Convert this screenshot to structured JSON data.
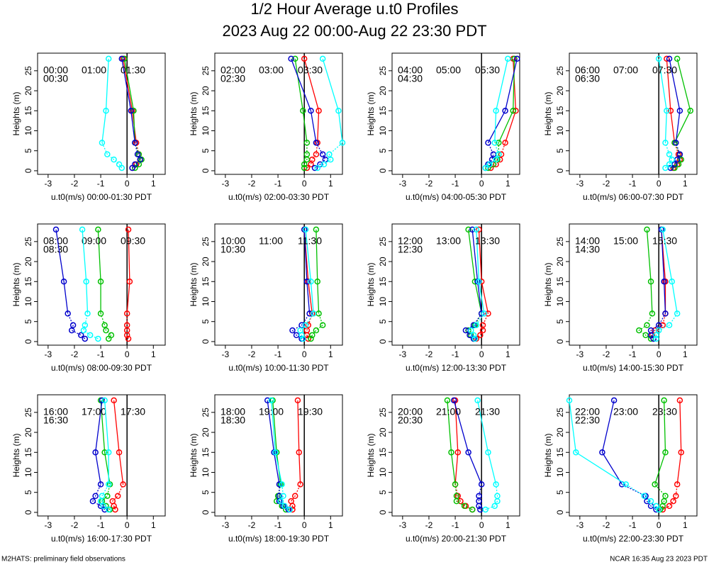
{
  "title": "1/2 Hour Average u.t0 Profiles",
  "subtitle": "2023 Aug 22 00:00-Aug 22 23:30 PDT",
  "footer_left": "M2HATS: preliminary field observations",
  "footer_right": "NCAR 16:35 Aug 23 2023 PDT",
  "chart_data": [
    {
      "type": "line",
      "xlabel": "u.t0(m/s) 00:00-01:30 PDT",
      "ylabel": "Heights (m)",
      "xlim": [
        -3.4,
        1.45
      ],
      "ylim": [
        -0.9,
        29.4
      ],
      "xticks": [
        -3,
        -2,
        -1,
        0,
        1
      ],
      "yticks": [
        0,
        5,
        10,
        15,
        20,
        25
      ],
      "y": [
        0.7,
        1.6,
        2.8,
        4.1,
        7,
        15,
        28
      ],
      "series": [
        {
          "name": "00:00",
          "color": "#ff0000",
          "values": [
            0.2,
            0.35,
            0.5,
            0.45,
            0.35,
            0.2,
            -0.15
          ]
        },
        {
          "name": "00:30",
          "color": "#00c000",
          "values": [
            0.3,
            0.45,
            0.55,
            0.45,
            0.3,
            0.25,
            -0.1
          ]
        },
        {
          "name": "01:00",
          "color": "#0000cc",
          "values": [
            0.2,
            0.3,
            0.5,
            0.4,
            0.3,
            0.15,
            -0.2
          ]
        },
        {
          "name": "01:30",
          "color": "#00ffff",
          "values": [
            -0.2,
            -0.3,
            -0.5,
            -0.75,
            -0.95,
            -0.8,
            -0.7
          ]
        }
      ]
    },
    {
      "type": "line",
      "xlabel": "u.t0(m/s) 02:00-03:30 PDT",
      "ylabel": "Heights (m)",
      "xlim": [
        -3.4,
        1.45
      ],
      "ylim": [
        -0.9,
        29.4
      ],
      "xticks": [
        -3,
        -2,
        -1,
        0,
        1
      ],
      "yticks": [
        0,
        5,
        10,
        15,
        20,
        25
      ],
      "y": [
        0.7,
        1.6,
        2.8,
        4.1,
        7,
        15,
        28
      ],
      "series": [
        {
          "name": "02:00",
          "color": "#ff0000",
          "values": [
            0.1,
            0.25,
            0.3,
            0.45,
            0.5,
            0.55,
            0
          ]
        },
        {
          "name": "02:30",
          "color": "#00c000",
          "values": [
            0,
            0,
            0.1,
            0.1,
            0.1,
            -0.05,
            -0.35
          ]
        },
        {
          "name": "03:00",
          "color": "#0000cc",
          "values": [
            0.4,
            0.6,
            0.8,
            0.7,
            0.45,
            0.25,
            -0.5
          ]
        },
        {
          "name": "03:30",
          "color": "#00ffff",
          "values": [
            0.5,
            0.75,
            1.0,
            0.95,
            1.45,
            1.3,
            0.7
          ]
        }
      ]
    },
    {
      "type": "line",
      "xlabel": "u.t0(m/s) 04:00-05:30 PDT",
      "ylabel": "Heights (m)",
      "xlim": [
        -3.4,
        1.45
      ],
      "ylim": [
        -0.9,
        29.4
      ],
      "xticks": [
        -3,
        -2,
        -1,
        0,
        1
      ],
      "yticks": [
        0,
        5,
        10,
        15,
        20,
        25
      ],
      "y": [
        0.7,
        1.6,
        2.8,
        4.1,
        7,
        15,
        28
      ],
      "series": [
        {
          "name": "04:00",
          "color": "#ff0000",
          "values": [
            0.35,
            0.55,
            0.7,
            0.75,
            0.9,
            1.3,
            1.2
          ]
        },
        {
          "name": "04:30",
          "color": "#00c000",
          "values": [
            0.25,
            0.45,
            0.6,
            0.65,
            0.65,
            1.2,
            1.25
          ]
        },
        {
          "name": "05:00",
          "color": "#0000cc",
          "values": [
            0.15,
            0.25,
            0.4,
            0.45,
            0.25,
            0.9,
            1.35
          ]
        },
        {
          "name": "05:30",
          "color": "#00ffff",
          "values": [
            0.15,
            0.3,
            0.55,
            0.65,
            0.5,
            0.55,
            1.0
          ]
        }
      ]
    },
    {
      "type": "line",
      "xlabel": "u.t0(m/s) 06:00-07:30 PDT",
      "ylabel": "Heights (m)",
      "xlim": [
        -3.4,
        1.45
      ],
      "ylim": [
        -0.9,
        29.4
      ],
      "xticks": [
        -3,
        -2,
        -1,
        0,
        1
      ],
      "yticks": [
        0,
        5,
        10,
        15,
        20,
        25
      ],
      "y": [
        0.7,
        1.6,
        2.8,
        4.1,
        7,
        15,
        28
      ],
      "series": [
        {
          "name": "06:00",
          "color": "#ff0000",
          "values": [
            0.55,
            0.7,
            0.8,
            0.75,
            0.6,
            0.45,
            0.3
          ]
        },
        {
          "name": "06:30",
          "color": "#00c000",
          "values": [
            0.6,
            0.75,
            0.85,
            0.8,
            0.6,
            1.2,
            0.7
          ]
        },
        {
          "name": "07:00",
          "color": "#0000cc",
          "values": [
            0.45,
            0.6,
            0.7,
            0.8,
            0.65,
            0.8,
            0.4
          ]
        },
        {
          "name": "07:30",
          "color": "#00ffff",
          "values": [
            0.25,
            0.4,
            0.5,
            0.4,
            0.25,
            0.3,
            0
          ]
        }
      ]
    },
    {
      "type": "line",
      "xlabel": "u.t0(m/s) 08:00-09:30 PDT",
      "ylabel": "Heights (m)",
      "xlim": [
        -3.4,
        1.45
      ],
      "ylim": [
        -0.9,
        29.4
      ],
      "xticks": [
        -3,
        -2,
        -1,
        0,
        1
      ],
      "yticks": [
        0,
        5,
        10,
        15,
        20,
        25
      ],
      "y": [
        0.7,
        1.6,
        2.8,
        4.1,
        7,
        15,
        28
      ],
      "series": [
        {
          "name": "08:00",
          "color": "#ff0000",
          "values": [
            0.05,
            0,
            0,
            0,
            0,
            0.1,
            0.05
          ]
        },
        {
          "name": "08:30",
          "color": "#00c000",
          "values": [
            -0.7,
            -0.6,
            -0.8,
            -0.85,
            -1.0,
            -1.0,
            -1.1
          ]
        },
        {
          "name": "09:00",
          "color": "#0000cc",
          "values": [
            -1.6,
            -1.75,
            -2.1,
            -2.05,
            -2.25,
            -2.4,
            -2.7
          ]
        },
        {
          "name": "09:30",
          "color": "#00ffff",
          "values": [
            -1.1,
            -1.4,
            -1.65,
            -1.6,
            -1.5,
            -1.55,
            -1.7
          ]
        }
      ]
    },
    {
      "type": "line",
      "xlabel": "u.t0(m/s) 10:00-11:30 PDT",
      "ylabel": "Heights (m)",
      "xlim": [
        -3.4,
        1.45
      ],
      "ylim": [
        -0.9,
        29.4
      ],
      "xticks": [
        -3,
        -2,
        -1,
        0,
        1
      ],
      "yticks": [
        0,
        5,
        10,
        15,
        20,
        25
      ],
      "y": [
        0.7,
        1.6,
        2.8,
        4.1,
        7,
        15,
        28
      ],
      "series": [
        {
          "name": "10:00",
          "color": "#ff0000",
          "values": [
            0.15,
            0.1,
            0.1,
            0.15,
            0.3,
            0.15,
            0
          ]
        },
        {
          "name": "10:30",
          "color": "#00c000",
          "values": [
            0.25,
            0.3,
            0.45,
            0.7,
            0.55,
            0.5,
            0.45
          ]
        },
        {
          "name": "11:00",
          "color": "#0000cc",
          "values": [
            -0.1,
            -0.3,
            -0.45,
            -0.1,
            0.2,
            0.1,
            0
          ]
        },
        {
          "name": "11:30",
          "color": "#00ffff",
          "values": [
            -0.05,
            -0.1,
            -0.15,
            0.05,
            0.35,
            0.25,
            0.05
          ]
        }
      ]
    },
    {
      "type": "line",
      "xlabel": "u.t0(m/s) 12:00-13:30 PDT",
      "ylabel": "Heights (m)",
      "xlim": [
        -3.4,
        1.45
      ],
      "ylim": [
        -0.9,
        29.4
      ],
      "xticks": [
        -3,
        -2,
        -1,
        0,
        1
      ],
      "yticks": [
        0,
        5,
        10,
        15,
        20,
        25
      ],
      "y": [
        0.7,
        1.6,
        2.8,
        4.1,
        7,
        15,
        28
      ],
      "series": [
        {
          "name": "12:00",
          "color": "#ff0000",
          "values": [
            -0.2,
            -0.05,
            0.05,
            0.05,
            0.25,
            0,
            -0.1
          ]
        },
        {
          "name": "12:30",
          "color": "#00c000",
          "values": [
            -0.3,
            -0.4,
            -0.5,
            -0.25,
            0,
            -0.25,
            -0.5
          ]
        },
        {
          "name": "13:00",
          "color": "#0000cc",
          "values": [
            -0.3,
            -0.45,
            -0.6,
            -0.3,
            0,
            -0.15,
            -0.35
          ]
        },
        {
          "name": "13:30",
          "color": "#00ffff",
          "values": [
            -0.25,
            -0.3,
            -0.4,
            -0.2,
            0.1,
            -0.1,
            -0.2
          ]
        }
      ]
    },
    {
      "type": "line",
      "xlabel": "u.t0(m/s) 14:00-15:30 PDT",
      "ylabel": "Heights (m)",
      "xlim": [
        -3.4,
        1.45
      ],
      "ylim": [
        -0.9,
        29.4
      ],
      "xticks": [
        -3,
        -2,
        -1,
        0,
        1
      ],
      "yticks": [
        0,
        5,
        10,
        15,
        20,
        25
      ],
      "y": [
        0.7,
        1.6,
        2.8,
        4.1,
        7,
        15,
        28
      ],
      "series": [
        {
          "name": "14:00",
          "color": "#ff0000",
          "values": [
            -0.2,
            -0.25,
            -0.15,
            0.15,
            0.25,
            0.25,
            0.1
          ]
        },
        {
          "name": "14:30",
          "color": "#00c000",
          "values": [
            -0.3,
            -0.5,
            -0.75,
            -0.45,
            -0.25,
            -0.3,
            -0.45
          ]
        },
        {
          "name": "15:00",
          "color": "#0000cc",
          "values": [
            -0.2,
            -0.3,
            -0.3,
            0,
            0.25,
            0.2,
            0.1
          ]
        },
        {
          "name": "15:30",
          "color": "#00ffff",
          "values": [
            -0.1,
            -0.1,
            0,
            0.4,
            0.7,
            0.5,
            0.15
          ]
        }
      ]
    },
    {
      "type": "line",
      "xlabel": "u.t0(m/s) 16:00-17:30 PDT",
      "ylabel": "Heights (m)",
      "xlim": [
        -3.4,
        1.45
      ],
      "ylim": [
        -0.9,
        29.4
      ],
      "xticks": [
        -3,
        -2,
        -1,
        0,
        1
      ],
      "yticks": [
        0,
        5,
        10,
        15,
        20,
        25
      ],
      "y": [
        0.7,
        1.6,
        2.8,
        4.1,
        7,
        15,
        28
      ],
      "series": [
        {
          "name": "16:00",
          "color": "#ff0000",
          "values": [
            -0.45,
            -0.5,
            -0.55,
            -0.35,
            -0.15,
            -0.3,
            -0.5
          ]
        },
        {
          "name": "16:30",
          "color": "#00c000",
          "values": [
            -0.65,
            -0.8,
            -0.95,
            -0.75,
            -0.65,
            -0.85,
            -1.0
          ]
        },
        {
          "name": "17:00",
          "color": "#0000cc",
          "values": [
            -0.85,
            -1.0,
            -1.3,
            -1.2,
            -1.0,
            -1.2,
            -0.95
          ]
        },
        {
          "name": "17:30",
          "color": "#00ffff",
          "values": [
            -0.7,
            -0.9,
            -1.0,
            -0.95,
            -0.7,
            -0.7,
            -0.85
          ]
        }
      ]
    },
    {
      "type": "line",
      "xlabel": "u.t0(m/s) 18:00-19:30 PDT",
      "ylabel": "Heights (m)",
      "xlim": [
        -3.4,
        1.45
      ],
      "ylim": [
        -0.9,
        29.4
      ],
      "xticks": [
        -3,
        -2,
        -1,
        0,
        1
      ],
      "yticks": [
        0,
        5,
        10,
        15,
        20,
        25
      ],
      "y": [
        0.7,
        1.6,
        2.8,
        4.1,
        7,
        15,
        28
      ],
      "series": [
        {
          "name": "18:00",
          "color": "#ff0000",
          "values": [
            -0.45,
            -0.45,
            -0.5,
            -0.35,
            -0.15,
            -0.2,
            -0.25
          ]
        },
        {
          "name": "18:30",
          "color": "#00c000",
          "values": [
            -0.7,
            -0.85,
            -1.05,
            -1.0,
            -0.9,
            -1.05,
            -1.2
          ]
        },
        {
          "name": "19:00",
          "color": "#0000cc",
          "values": [
            -0.6,
            -0.8,
            -0.95,
            -0.95,
            -0.95,
            -1.15,
            -1.4
          ]
        },
        {
          "name": "19:30",
          "color": "#00ffff",
          "values": [
            -0.55,
            -0.75,
            -0.9,
            -0.8,
            -0.85,
            -1.1,
            -1.25
          ]
        }
      ]
    },
    {
      "type": "line",
      "xlabel": "u.t0(m/s) 20:00-21:30 PDT",
      "ylabel": "Heights (m)",
      "xlim": [
        -3.4,
        1.45
      ],
      "ylim": [
        -0.9,
        29.4
      ],
      "xticks": [
        -3,
        -2,
        -1,
        0,
        1
      ],
      "yticks": [
        0,
        5,
        10,
        15,
        20,
        25
      ],
      "y": [
        0.7,
        1.6,
        2.8,
        4.1,
        7,
        15,
        28
      ],
      "series": [
        {
          "name": "20:00",
          "color": "#ff0000",
          "values": [
            -0.35,
            -0.6,
            -0.8,
            -0.9,
            -1.0,
            -0.9,
            -1.0
          ]
        },
        {
          "name": "20:30",
          "color": "#00c000",
          "values": [
            -0.35,
            -0.65,
            -0.95,
            -0.95,
            -1.0,
            -1.15,
            -1.3
          ]
        },
        {
          "name": "21:00",
          "color": "#0000cc",
          "values": [
            -0.05,
            -0.1,
            -0.1,
            -0.1,
            0,
            -0.5,
            -1.05
          ]
        },
        {
          "name": "21:30",
          "color": "#00ffff",
          "values": [
            0.15,
            0.5,
            0.6,
            0.6,
            0.55,
            0.25,
            -0.15
          ]
        }
      ]
    },
    {
      "type": "line",
      "xlabel": "u.t0(m/s) 22:00-23:30 PDT",
      "ylabel": "Heights (m)",
      "xlim": [
        -3.4,
        1.45
      ],
      "ylim": [
        -0.9,
        29.4
      ],
      "xticks": [
        -3,
        -2,
        -1,
        0,
        1
      ],
      "yticks": [
        0,
        5,
        10,
        15,
        20,
        25
      ],
      "y": [
        0.7,
        1.6,
        2.8,
        4.1,
        7,
        15,
        28
      ],
      "series": [
        {
          "name": "22:00",
          "color": "#ff0000",
          "values": [
            0.15,
            0.4,
            0.55,
            0.65,
            0.7,
            0.85,
            0.8
          ]
        },
        {
          "name": "22:30",
          "color": "#00c000",
          "values": [
            0.05,
            0.15,
            0.2,
            0.25,
            -0.15,
            0.25,
            0.2
          ]
        },
        {
          "name": "23:00",
          "color": "#0000cc",
          "values": [
            -0.1,
            -0.3,
            -0.45,
            -0.5,
            -1.4,
            -2.15,
            -1.7
          ]
        },
        {
          "name": "23:30",
          "color": "#00ffff",
          "values": [
            0,
            -0.1,
            -0.3,
            -0.55,
            -1.25,
            -3.15,
            -3.4
          ]
        }
      ]
    }
  ]
}
